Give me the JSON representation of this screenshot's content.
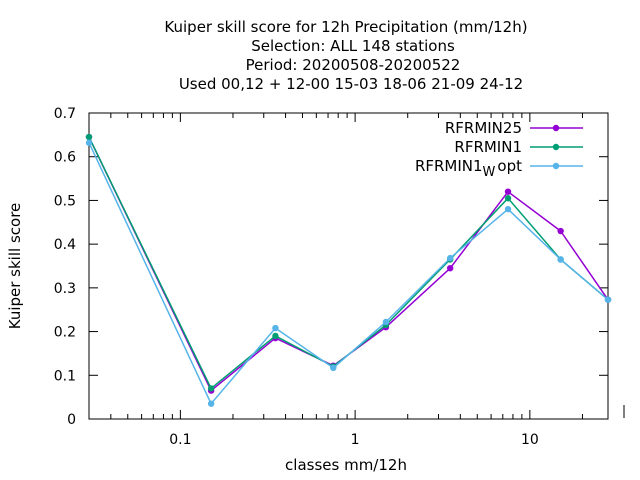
{
  "chart_data": {
    "type": "line",
    "title_lines": [
      "Kuiper skill score  for 12h Precipitation (mm/12h)",
      "Selection: ALL    148 stations",
      "Period: 20200508-20200522",
      "Used  00,12  + 12-00 15-03 18-06 21-09 24-12"
    ],
    "xlabel": "classes mm/12h",
    "ylabel": "Kuiper skill score",
    "xscale": "log",
    "xlim": [
      0.03,
      28
    ],
    "ylim": [
      0,
      0.7
    ],
    "x_ticks": [
      {
        "value": 0.1,
        "label": "0.1"
      },
      {
        "value": 1,
        "label": "1"
      },
      {
        "value": 10,
        "label": "10"
      }
    ],
    "y_ticks": [
      {
        "value": 0,
        "label": "0"
      },
      {
        "value": 0.1,
        "label": "0.1"
      },
      {
        "value": 0.2,
        "label": "0.2"
      },
      {
        "value": 0.3,
        "label": "0.3"
      },
      {
        "value": 0.4,
        "label": "0.4"
      },
      {
        "value": 0.5,
        "label": "0.5"
      },
      {
        "value": 0.6,
        "label": "0.6"
      },
      {
        "value": 0.7,
        "label": "0.7"
      }
    ],
    "x": [
      0.03,
      0.15,
      0.35,
      0.75,
      1.5,
      3.5,
      7.5,
      15,
      28
    ],
    "series": [
      {
        "name": "RFRMIN25",
        "name_main": "RFRMIN25",
        "name_sub": "",
        "name_tail": "",
        "color": "#9400d3",
        "values": [
          0.645,
          0.065,
          0.185,
          0.122,
          0.21,
          0.345,
          0.52,
          0.43,
          0.273
        ]
      },
      {
        "name": "RFRMIN1",
        "name_main": "RFRMIN1",
        "name_sub": "",
        "name_tail": "",
        "color": "#009e73",
        "values": [
          0.645,
          0.07,
          0.19,
          0.12,
          0.215,
          0.365,
          0.505,
          0.365,
          0.273
        ]
      },
      {
        "name": "RFRMIN1_W opt",
        "name_main": "RFRMIN1",
        "name_sub": "W",
        "name_tail": "opt",
        "color": "#56b4e9",
        "values": [
          0.632,
          0.035,
          0.208,
          0.117,
          0.222,
          0.368,
          0.48,
          0.365,
          0.273
        ]
      }
    ],
    "legend_position": "top-right",
    "grid": false
  }
}
